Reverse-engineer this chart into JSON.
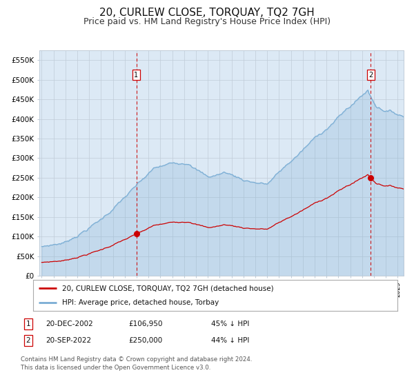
{
  "title": "20, CURLEW CLOSE, TORQUAY, TQ2 7GH",
  "subtitle": "Price paid vs. HM Land Registry's House Price Index (HPI)",
  "title_fontsize": 11,
  "subtitle_fontsize": 9,
  "plot_bg_color": "#dce9f5",
  "hpi_color": "#7aadd4",
  "price_color": "#cc0000",
  "sale1_date_num": 2002.97,
  "sale1_price": 106950,
  "sale1_label": "1",
  "sale2_date_num": 2022.72,
  "sale2_price": 250000,
  "sale2_label": "2",
  "xmin": 1994.8,
  "xmax": 2025.5,
  "ymin": 0,
  "ymax": 575000,
  "yticks": [
    0,
    50000,
    100000,
    150000,
    200000,
    250000,
    300000,
    350000,
    400000,
    450000,
    500000,
    550000
  ],
  "legend_label_red": "20, CURLEW CLOSE, TORQUAY, TQ2 7GH (detached house)",
  "legend_label_blue": "HPI: Average price, detached house, Torbay",
  "footer": "Contains HM Land Registry data © Crown copyright and database right 2024.\nThis data is licensed under the Open Government Licence v3.0."
}
